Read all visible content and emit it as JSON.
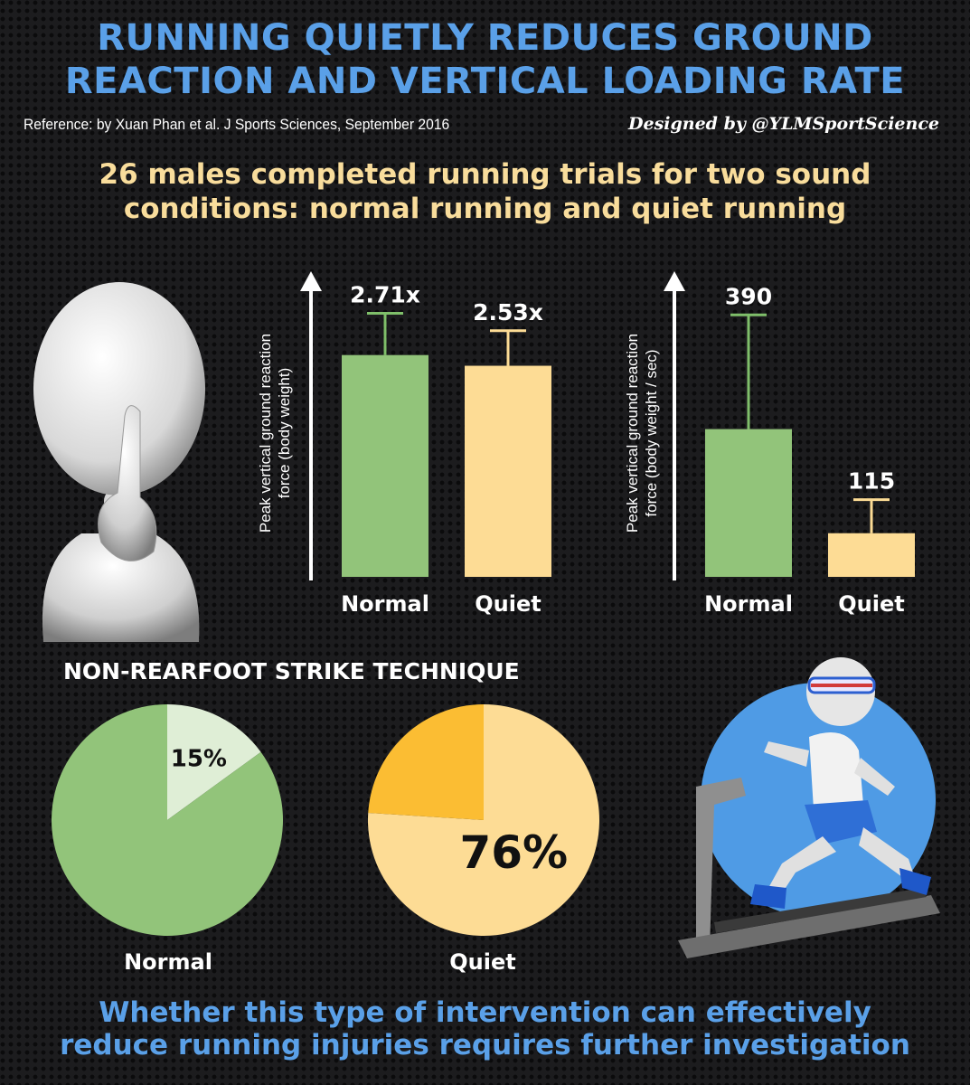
{
  "header": {
    "title_line1": "RUNNING QUIETLY REDUCES GROUND",
    "title_line2": "REACTION AND VERTICAL LOADING RATE",
    "reference": "Reference: by Xuan Phan et al. J Sports Sciences, September 2016",
    "designed_by": "Designed by @YLMSportScience",
    "subtitle_line1": "26 males completed running trials for two sound",
    "subtitle_line2": "conditions: normal running and quiet running"
  },
  "colors": {
    "title_blue": "#5aa0e8",
    "subtitle_yellow": "#f9dd9c",
    "normal_green": "#92c47a",
    "quiet_yellow": "#fddc95",
    "light_green": "#dfeed6",
    "orange_slice": "#fbbd33",
    "error_bar_green": "#7fbf6a",
    "error_bar_yellow": "#fddc95"
  },
  "chart_data": [
    {
      "type": "bar",
      "ylabel_line1": "Peak vertical ground reaction",
      "ylabel_line2": "force (body weight)",
      "categories": [
        "Normal",
        "Quiet"
      ],
      "values": [
        2.28,
        2.17
      ],
      "error_top": [
        2.71,
        2.53
      ],
      "data_labels": [
        "2.71x",
        "2.53x"
      ],
      "ylim": [
        0,
        2.9
      ]
    },
    {
      "type": "bar",
      "ylabel_line1": "Peak vertical ground reaction",
      "ylabel_line2": "force (body weight / sec)",
      "categories": [
        "Normal",
        "Quiet"
      ],
      "values": [
        220,
        65
      ],
      "error_top": [
        390,
        115
      ],
      "data_labels": [
        "390",
        "115"
      ],
      "ylim": [
        0,
        420
      ]
    },
    {
      "type": "pie",
      "title": "NON-REARFOOT STRIKE TECHNIQUE",
      "label": "Normal",
      "slices": [
        {
          "value": 15,
          "label": "15%"
        },
        {
          "value": 85
        }
      ]
    },
    {
      "type": "pie",
      "label": "Quiet",
      "slices": [
        {
          "value": 76,
          "label": "76%"
        },
        {
          "value": 24
        }
      ]
    }
  ],
  "footer": {
    "line1": "Whether this type of intervention can effectively",
    "line2": "reduce running injuries requires further investigation"
  },
  "illustrations": [
    "shush-figure-icon",
    "treadmill-runner-icon"
  ]
}
